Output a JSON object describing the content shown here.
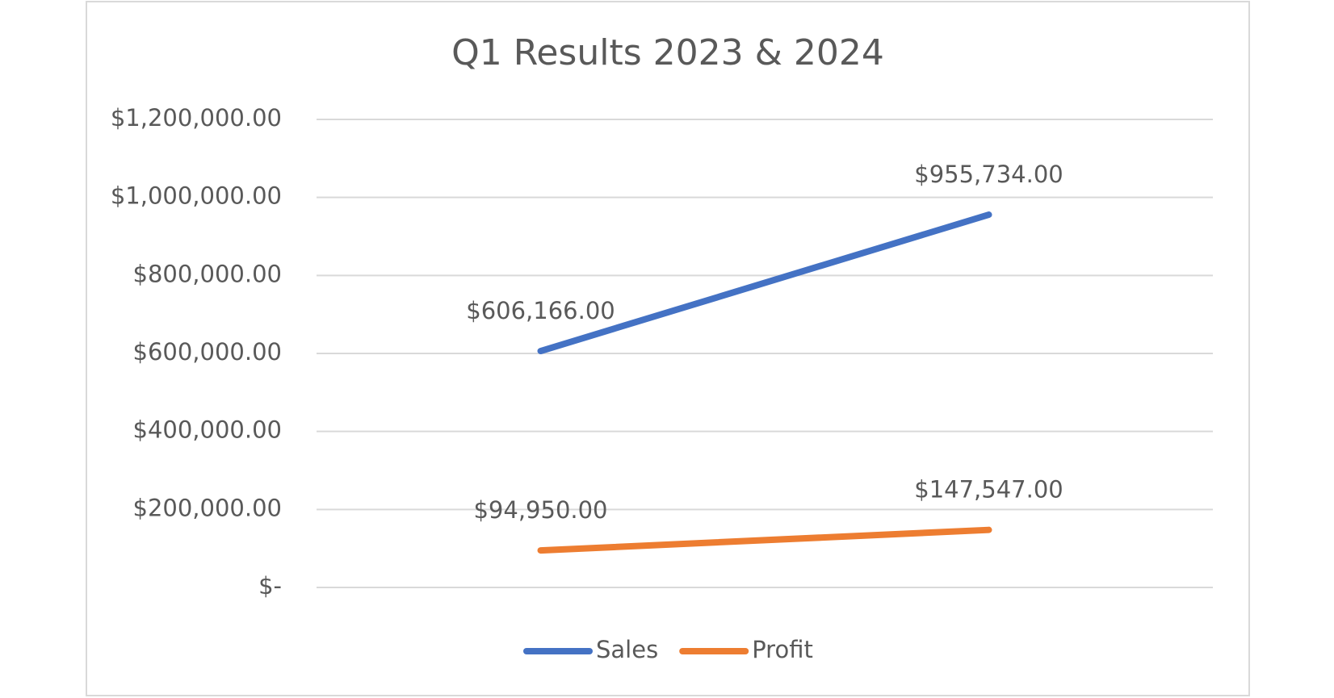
{
  "chart_data": {
    "type": "line",
    "title": "Q1 Results 2023 & 2024",
    "categories": [
      null,
      null
    ],
    "series": [
      {
        "name": "Sales",
        "color": "#4472c4",
        "values": [
          606166,
          955734
        ],
        "value_labels": [
          "$606,166.00",
          "$955,734.00"
        ]
      },
      {
        "name": "Profit",
        "color": "#ed7d31",
        "values": [
          94950,
          147547
        ],
        "value_labels": [
          "$94,950.00",
          "$147,547.00"
        ]
      }
    ],
    "ylim": [
      0,
      1200000
    ],
    "yticks": [
      {
        "value": 0,
        "label": "$-"
      },
      {
        "value": 200000,
        "label": "$200,000.00"
      },
      {
        "value": 400000,
        "label": "$400,000.00"
      },
      {
        "value": 600000,
        "label": "$600,000.00"
      },
      {
        "value": 800000,
        "label": "$800,000.00"
      },
      {
        "value": 1000000,
        "label": "$1,000,000.00"
      },
      {
        "value": 1200000,
        "label": "$1,200,000.00"
      }
    ],
    "grid": true,
    "legend": "bottom"
  }
}
